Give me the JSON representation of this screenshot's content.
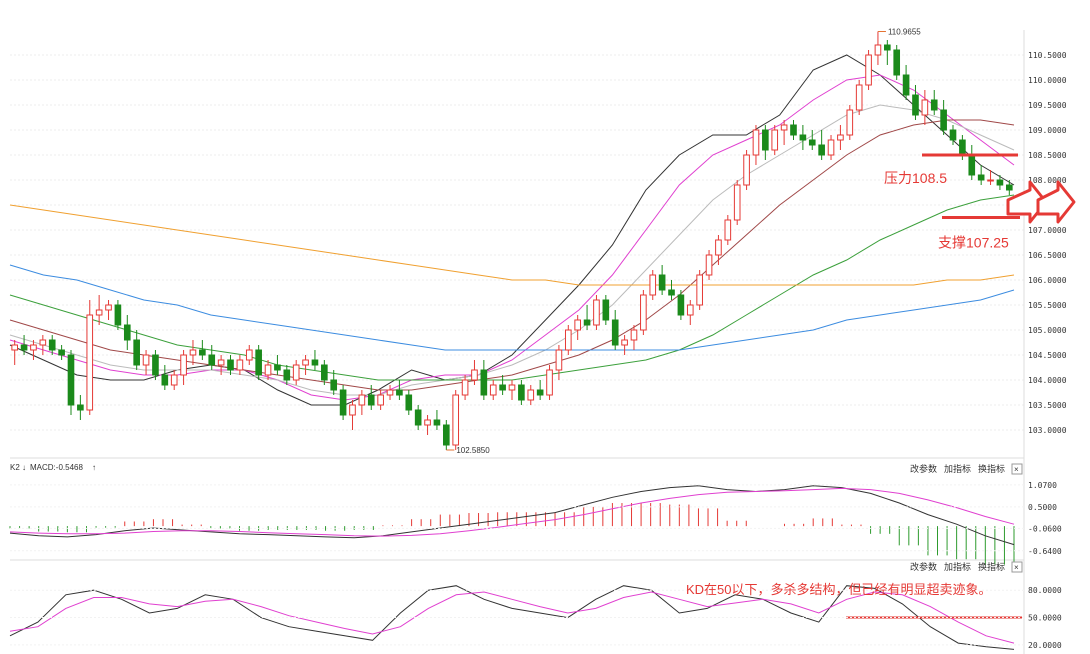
{
  "chart_data": [
    {
      "type": "candlestick",
      "instrument_title": "",
      "y_axis": {
        "ticks": [
          "110.5000",
          "110.0000",
          "109.5000",
          "109.0000",
          "108.5000",
          "108.0000",
          "107.5000",
          "107.0000",
          "106.5000",
          "106.0000",
          "105.5000",
          "105.0000",
          "104.5000",
          "104.0000",
          "103.5000",
          "103.0000"
        ],
        "ylim": [
          102.5,
          111.0
        ]
      },
      "annotations": {
        "high_label": "110.9655",
        "low_label": "102.5850",
        "price_marker": "107.5900",
        "resistance_label": "压力108.5",
        "support_label": "支撑107.25"
      },
      "resistance": 108.5,
      "support": 107.25,
      "candles": [
        [
          104.6,
          104.8,
          104.3,
          104.7
        ],
        [
          104.7,
          104.9,
          104.5,
          104.6
        ],
        [
          104.6,
          104.8,
          104.4,
          104.7
        ],
        [
          104.7,
          104.9,
          104.5,
          104.8
        ],
        [
          104.8,
          104.9,
          104.5,
          104.6
        ],
        [
          104.6,
          104.7,
          104.4,
          104.5
        ],
        [
          104.5,
          104.6,
          103.3,
          103.5
        ],
        [
          103.5,
          103.7,
          103.2,
          103.4
        ],
        [
          103.4,
          105.6,
          103.3,
          105.3
        ],
        [
          105.3,
          105.7,
          105.1,
          105.4
        ],
        [
          105.4,
          105.6,
          105.2,
          105.5
        ],
        [
          105.5,
          105.6,
          105.0,
          105.1
        ],
        [
          105.1,
          105.3,
          104.6,
          104.8
        ],
        [
          104.8,
          105.0,
          104.2,
          104.3
        ],
        [
          104.3,
          104.6,
          104.1,
          104.5
        ],
        [
          104.5,
          104.6,
          104.0,
          104.1
        ],
        [
          104.1,
          104.3,
          103.8,
          103.9
        ],
        [
          103.9,
          104.2,
          103.8,
          104.1
        ],
        [
          104.1,
          104.6,
          103.9,
          104.5
        ],
        [
          104.5,
          104.8,
          104.3,
          104.6
        ],
        [
          104.6,
          104.8,
          104.4,
          104.5
        ],
        [
          104.5,
          104.7,
          104.2,
          104.3
        ],
        [
          104.3,
          104.5,
          104.1,
          104.4
        ],
        [
          104.4,
          104.5,
          104.1,
          104.2
        ],
        [
          104.2,
          104.5,
          104.1,
          104.4
        ],
        [
          104.4,
          104.7,
          104.3,
          104.6
        ],
        [
          104.6,
          104.7,
          104.0,
          104.1
        ],
        [
          104.1,
          104.4,
          104.0,
          104.3
        ],
        [
          104.3,
          104.5,
          104.1,
          104.2
        ],
        [
          104.2,
          104.3,
          103.9,
          104.0
        ],
        [
          104.0,
          104.4,
          103.9,
          104.3
        ],
        [
          104.3,
          104.5,
          104.1,
          104.4
        ],
        [
          104.4,
          104.6,
          104.2,
          104.3
        ],
        [
          104.3,
          104.4,
          103.9,
          104.0
        ],
        [
          104.0,
          104.2,
          103.7,
          103.8
        ],
        [
          103.8,
          103.9,
          103.2,
          103.3
        ],
        [
          103.3,
          103.6,
          103.0,
          103.5
        ],
        [
          103.5,
          103.8,
          103.3,
          103.7
        ],
        [
          103.7,
          103.9,
          103.4,
          103.5
        ],
        [
          103.5,
          103.8,
          103.4,
          103.7
        ],
        [
          103.7,
          103.9,
          103.6,
          103.8
        ],
        [
          103.8,
          104.0,
          103.6,
          103.7
        ],
        [
          103.7,
          103.8,
          103.3,
          103.4
        ],
        [
          103.4,
          103.5,
          103.0,
          103.1
        ],
        [
          103.1,
          103.3,
          102.9,
          103.2
        ],
        [
          103.2,
          103.4,
          103.0,
          103.1
        ],
        [
          103.1,
          103.2,
          102.6,
          102.7
        ],
        [
          102.7,
          103.8,
          102.6,
          103.7
        ],
        [
          103.7,
          104.1,
          103.6,
          104.0
        ],
        [
          104.0,
          104.4,
          103.9,
          104.2
        ],
        [
          104.2,
          104.4,
          103.6,
          103.7
        ],
        [
          103.7,
          104.0,
          103.6,
          103.9
        ],
        [
          103.9,
          104.1,
          103.7,
          103.8
        ],
        [
          103.8,
          104.0,
          103.6,
          103.9
        ],
        [
          103.9,
          104.0,
          103.5,
          103.6
        ],
        [
          103.6,
          103.9,
          103.5,
          103.8
        ],
        [
          103.8,
          104.0,
          103.6,
          103.7
        ],
        [
          103.7,
          104.3,
          103.6,
          104.2
        ],
        [
          104.2,
          104.7,
          104.0,
          104.6
        ],
        [
          104.6,
          105.1,
          104.5,
          105.0
        ],
        [
          105.0,
          105.3,
          104.8,
          105.2
        ],
        [
          105.2,
          105.5,
          105.0,
          105.1
        ],
        [
          105.1,
          105.7,
          105.0,
          105.6
        ],
        [
          105.6,
          105.7,
          105.1,
          105.2
        ],
        [
          105.2,
          105.4,
          104.6,
          104.7
        ],
        [
          104.7,
          104.9,
          104.5,
          104.8
        ],
        [
          104.8,
          105.1,
          104.6,
          105.0
        ],
        [
          105.0,
          105.8,
          104.9,
          105.7
        ],
        [
          105.7,
          106.2,
          105.6,
          106.1
        ],
        [
          106.1,
          106.3,
          105.7,
          105.8
        ],
        [
          105.8,
          106.0,
          105.6,
          105.7
        ],
        [
          105.7,
          105.8,
          105.2,
          105.3
        ],
        [
          105.3,
          105.6,
          105.1,
          105.5
        ],
        [
          105.5,
          106.2,
          105.4,
          106.1
        ],
        [
          106.1,
          106.6,
          106.0,
          106.5
        ],
        [
          106.5,
          106.9,
          106.3,
          106.8
        ],
        [
          106.8,
          107.3,
          106.7,
          107.2
        ],
        [
          107.2,
          108.0,
          107.1,
          107.9
        ],
        [
          107.9,
          108.6,
          107.8,
          108.5
        ],
        [
          108.5,
          109.1,
          108.3,
          109.0
        ],
        [
          109.0,
          109.1,
          108.4,
          108.6
        ],
        [
          108.6,
          109.1,
          108.5,
          109.0
        ],
        [
          109.0,
          109.2,
          108.7,
          109.1
        ],
        [
          109.1,
          109.2,
          108.8,
          108.9
        ],
        [
          108.9,
          109.1,
          108.6,
          108.8
        ],
        [
          108.8,
          109.0,
          108.6,
          108.7
        ],
        [
          108.7,
          109.0,
          108.4,
          108.5
        ],
        [
          108.5,
          108.9,
          108.4,
          108.8
        ],
        [
          108.8,
          109.1,
          108.6,
          108.9
        ],
        [
          108.9,
          109.5,
          108.8,
          109.4
        ],
        [
          109.4,
          110.0,
          109.3,
          109.9
        ],
        [
          109.9,
          110.6,
          109.8,
          110.5
        ],
        [
          110.5,
          110.97,
          110.3,
          110.7
        ],
        [
          110.7,
          110.8,
          110.3,
          110.6
        ],
        [
          110.6,
          110.7,
          110.0,
          110.1
        ],
        [
          110.1,
          110.3,
          109.6,
          109.7
        ],
        [
          109.7,
          109.9,
          109.2,
          109.3
        ],
        [
          109.3,
          109.8,
          109.1,
          109.6
        ],
        [
          109.6,
          109.8,
          109.3,
          109.4
        ],
        [
          109.4,
          109.6,
          108.9,
          109.0
        ],
        [
          109.0,
          109.1,
          108.7,
          108.8
        ],
        [
          108.8,
          108.9,
          108.4,
          108.5
        ],
        [
          108.5,
          108.7,
          108.0,
          108.1
        ],
        [
          108.1,
          108.3,
          107.9,
          108.0
        ],
        [
          108.0,
          108.2,
          107.9,
          108.0
        ],
        [
          108.0,
          108.1,
          107.8,
          107.9
        ],
        [
          107.9,
          108.0,
          107.7,
          107.8
        ]
      ],
      "ma_lines": [
        {
          "color": "#333333",
          "values": [
            104.7,
            104.4,
            104.1,
            104.0,
            104.0,
            104.2,
            104.3,
            104.2,
            103.8,
            103.5,
            103.5,
            103.8,
            104.2,
            104.0,
            104.1,
            104.5,
            105.2,
            105.9,
            106.7,
            107.8,
            108.5,
            108.9,
            108.9,
            109.3,
            110.2,
            110.5,
            110.1,
            109.5,
            108.9,
            108.3,
            107.9
          ]
        },
        {
          "color": "#e040d0",
          "values": [
            104.8,
            104.6,
            104.4,
            104.2,
            104.1,
            104.1,
            104.2,
            104.2,
            104.0,
            103.7,
            103.6,
            103.7,
            104.0,
            104.1,
            104.1,
            104.4,
            104.9,
            105.4,
            106.1,
            107.0,
            107.9,
            108.5,
            108.8,
            109.1,
            109.6,
            110.0,
            110.1,
            109.8,
            109.3,
            108.8,
            108.3
          ]
        },
        {
          "color": "#bbbbbb",
          "values": [
            104.9,
            104.7,
            104.5,
            104.3,
            104.2,
            104.2,
            104.2,
            104.1,
            104.0,
            103.8,
            103.7,
            103.7,
            103.9,
            104.0,
            104.1,
            104.3,
            104.6,
            105.0,
            105.5,
            106.2,
            106.9,
            107.6,
            108.1,
            108.5,
            108.9,
            109.3,
            109.5,
            109.4,
            109.2,
            108.9,
            108.6
          ]
        },
        {
          "color": "#a04848",
          "values": [
            105.2,
            105.0,
            104.8,
            104.6,
            104.5,
            104.4,
            104.3,
            104.2,
            104.1,
            104.0,
            103.9,
            103.8,
            103.8,
            103.9,
            104.0,
            104.1,
            104.3,
            104.5,
            104.8,
            105.2,
            105.7,
            106.3,
            106.9,
            107.5,
            108.0,
            108.5,
            108.9,
            109.1,
            109.2,
            109.2,
            109.1
          ]
        },
        {
          "color": "#3ca03c",
          "values": [
            105.7,
            105.5,
            105.3,
            105.1,
            104.9,
            104.7,
            104.6,
            104.5,
            104.3,
            104.2,
            104.1,
            104.0,
            104.0,
            104.0,
            104.0,
            104.0,
            104.1,
            104.2,
            104.3,
            104.4,
            104.6,
            104.9,
            105.3,
            105.7,
            106.1,
            106.4,
            106.8,
            107.1,
            107.4,
            107.6,
            107.7
          ]
        },
        {
          "color": "#3c8ce0",
          "values": [
            106.3,
            106.1,
            106.0,
            105.8,
            105.6,
            105.5,
            105.3,
            105.2,
            105.1,
            105.0,
            104.9,
            104.8,
            104.7,
            104.6,
            104.6,
            104.6,
            104.6,
            104.6,
            104.6,
            104.6,
            104.6,
            104.7,
            104.8,
            104.9,
            105.0,
            105.2,
            105.3,
            105.4,
            105.5,
            105.6,
            105.8
          ]
        },
        {
          "color": "#f0a030",
          "values": [
            107.5,
            107.4,
            107.3,
            107.2,
            107.1,
            107.0,
            106.9,
            106.8,
            106.7,
            106.6,
            106.5,
            106.4,
            106.3,
            106.2,
            106.1,
            106.0,
            106.0,
            105.9,
            105.9,
            105.9,
            105.9,
            105.9,
            105.9,
            105.9,
            105.9,
            105.9,
            105.9,
            105.9,
            106.0,
            106.0,
            106.1
          ]
        }
      ]
    },
    {
      "type": "macd",
      "header_label": "MACD:-0.5468",
      "y_axis": {
        "ticks": [
          "1.0700",
          "0.5000",
          "-0.0600",
          "-0.6400"
        ],
        "ylim": [
          -0.75,
          1.25
        ]
      },
      "dif": [
        -0.18,
        -0.25,
        -0.28,
        -0.22,
        -0.12,
        -0.05,
        -0.1,
        -0.15,
        -0.2,
        -0.22,
        -0.25,
        -0.28,
        -0.3,
        -0.25,
        -0.15,
        -0.05,
        0.05,
        0.15,
        0.25,
        0.35,
        0.55,
        0.75,
        0.9,
        1.0,
        1.05,
        0.95,
        0.9,
        0.95,
        1.05,
        1.0,
        0.85,
        0.6,
        0.3,
        0.05,
        -0.25,
        -0.48
      ],
      "dea": [
        -0.15,
        -0.18,
        -0.2,
        -0.2,
        -0.18,
        -0.14,
        -0.12,
        -0.12,
        -0.14,
        -0.17,
        -0.2,
        -0.22,
        -0.25,
        -0.26,
        -0.24,
        -0.2,
        -0.12,
        -0.03,
        0.07,
        0.17,
        0.3,
        0.45,
        0.6,
        0.72,
        0.82,
        0.88,
        0.9,
        0.92,
        0.95,
        0.98,
        0.95,
        0.85,
        0.68,
        0.48,
        0.25,
        0.05
      ],
      "histogram_note": "red above zero, green below zero"
    },
    {
      "type": "kd",
      "annotation": "KD在50以下，多杀多结构，但已经有明显超卖迹象。",
      "y_axis": {
        "ticks": [
          "80.0000",
          "50.0000",
          "20.0000"
        ],
        "ylim": [
          10,
          100
        ]
      },
      "k": [
        30,
        45,
        75,
        80,
        70,
        55,
        60,
        75,
        70,
        50,
        40,
        35,
        30,
        25,
        55,
        80,
        85,
        70,
        60,
        55,
        50,
        70,
        85,
        80,
        55,
        60,
        75,
        70,
        55,
        45,
        85,
        82,
        65,
        40,
        22,
        18,
        15
      ],
      "d": [
        35,
        40,
        60,
        72,
        72,
        65,
        62,
        68,
        70,
        62,
        52,
        45,
        38,
        32,
        40,
        60,
        75,
        78,
        70,
        62,
        55,
        60,
        72,
        78,
        70,
        62,
        66,
        70,
        65,
        55,
        70,
        78,
        75,
        62,
        45,
        30,
        22
      ],
      "reference_level": 50
    }
  ],
  "toolbar": {
    "change_params": "改参数",
    "add_indicator": "加指标",
    "switch_indicator": "换指标"
  },
  "indicator_label_prefix": "K2"
}
